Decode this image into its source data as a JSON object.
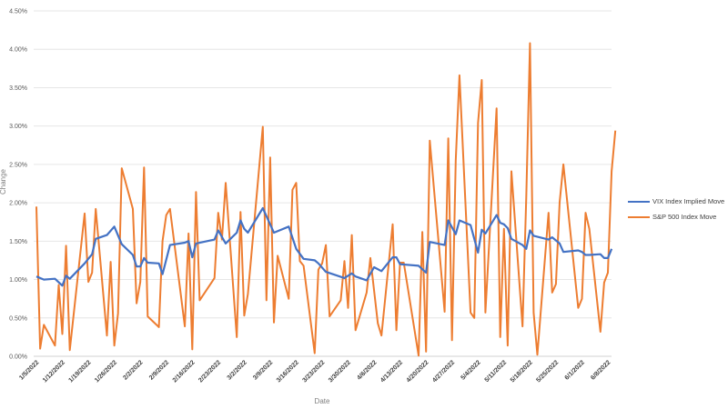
{
  "chart_data": {
    "type": "line",
    "title": "",
    "xlabel": "Date",
    "ylabel": "Change",
    "ylim": [
      0,
      4.5
    ],
    "y_unit": "%",
    "y_ticks": [
      "0.00%",
      "0.50%",
      "1.00%",
      "1.50%",
      "2.00%",
      "2.50%",
      "3.00%",
      "3.50%",
      "4.00%",
      "4.50%"
    ],
    "x_ticks": [
      "1/5/2022",
      "1/12/2022",
      "1/19/2022",
      "1/26/2022",
      "2/2/2022",
      "2/9/2022",
      "2/16/2022",
      "2/23/2022",
      "3/2/2022",
      "3/9/2022",
      "3/16/2022",
      "3/23/2022",
      "3/30/2022",
      "4/6/2022",
      "4/13/2022",
      "4/20/2022",
      "4/27/2022",
      "5/4/2022",
      "5/11/2022",
      "5/18/2022",
      "5/25/2022",
      "6/1/2022",
      "6/8/2022"
    ],
    "xlim": [
      "1/5/2022",
      "6/10/2022"
    ],
    "grid": "horizontal",
    "legend_position": "right",
    "series": [
      {
        "name": "VIX Index Implied Move",
        "color": "#4472c4",
        "points": [
          [
            "1/5/2022",
            1.04
          ],
          [
            "1/7/2022",
            1.0
          ],
          [
            "1/10/2022",
            1.01
          ],
          [
            "1/12/2022",
            0.92
          ],
          [
            "1/13/2022",
            1.05
          ],
          [
            "1/14/2022",
            1.01
          ],
          [
            "1/18/2022",
            1.21
          ],
          [
            "1/20/2022",
            1.33
          ],
          [
            "1/21/2022",
            1.53
          ],
          [
            "1/24/2022",
            1.58
          ],
          [
            "1/26/2022",
            1.69
          ],
          [
            "1/28/2022",
            1.46
          ],
          [
            "1/31/2022",
            1.32
          ],
          [
            "2/1/2022",
            1.17
          ],
          [
            "2/2/2022",
            1.17
          ],
          [
            "2/3/2022",
            1.28
          ],
          [
            "2/4/2022",
            1.22
          ],
          [
            "2/7/2022",
            1.21
          ],
          [
            "2/8/2022",
            1.07
          ],
          [
            "2/10/2022",
            1.45
          ],
          [
            "2/14/2022",
            1.48
          ],
          [
            "2/15/2022",
            1.5
          ],
          [
            "2/16/2022",
            1.29
          ],
          [
            "2/17/2022",
            1.47
          ],
          [
            "2/22/2022",
            1.52
          ],
          [
            "2/23/2022",
            1.64
          ],
          [
            "2/25/2022",
            1.47
          ],
          [
            "2/28/2022",
            1.61
          ],
          [
            "3/1/2022",
            1.77
          ],
          [
            "3/2/2022",
            1.66
          ],
          [
            "3/3/2022",
            1.61
          ],
          [
            "3/7/2022",
            1.93
          ],
          [
            "3/10/2022",
            1.61
          ],
          [
            "3/14/2022",
            1.69
          ],
          [
            "3/16/2022",
            1.4
          ],
          [
            "3/18/2022",
            1.27
          ],
          [
            "3/21/2022",
            1.25
          ],
          [
            "3/22/2022",
            1.21
          ],
          [
            "3/24/2022",
            1.1
          ],
          [
            "3/29/2022",
            1.02
          ],
          [
            "3/31/2022",
            1.08
          ],
          [
            "4/1/2022",
            1.04
          ],
          [
            "4/4/2022",
            0.99
          ],
          [
            "4/6/2022",
            1.16
          ],
          [
            "4/8/2022",
            1.11
          ],
          [
            "4/11/2022",
            1.29
          ],
          [
            "4/12/2022",
            1.29
          ],
          [
            "4/13/2022",
            1.2
          ],
          [
            "4/18/2022",
            1.18
          ],
          [
            "4/20/2022",
            1.09
          ],
          [
            "4/21/2022",
            1.49
          ],
          [
            "4/25/2022",
            1.45
          ],
          [
            "4/26/2022",
            1.77
          ],
          [
            "4/28/2022",
            1.59
          ],
          [
            "4/29/2022",
            1.77
          ],
          [
            "5/2/2022",
            1.71
          ],
          [
            "5/4/2022",
            1.35
          ],
          [
            "5/5/2022",
            1.65
          ],
          [
            "5/6/2022",
            1.6
          ],
          [
            "5/9/2022",
            1.84
          ],
          [
            "5/10/2022",
            1.74
          ],
          [
            "5/11/2022",
            1.72
          ],
          [
            "5/12/2022",
            1.67
          ],
          [
            "5/13/2022",
            1.53
          ],
          [
            "5/16/2022",
            1.45
          ],
          [
            "5/17/2022",
            1.4
          ],
          [
            "5/18/2022",
            1.64
          ],
          [
            "5/19/2022",
            1.57
          ],
          [
            "5/23/2022",
            1.52
          ],
          [
            "5/24/2022",
            1.55
          ],
          [
            "5/26/2022",
            1.47
          ],
          [
            "5/27/2022",
            1.36
          ],
          [
            "5/31/2022",
            1.38
          ],
          [
            "6/1/2022",
            1.36
          ],
          [
            "6/2/2022",
            1.32
          ],
          [
            "6/3/2022",
            1.32
          ],
          [
            "6/6/2022",
            1.33
          ],
          [
            "6/7/2022",
            1.28
          ],
          [
            "6/8/2022",
            1.28
          ],
          [
            "6/9/2022",
            1.4
          ]
        ]
      },
      {
        "name": "S&P 500 Index Move",
        "color": "#ed7d31",
        "points": [
          [
            "1/5/2022",
            1.95
          ],
          [
            "1/6/2022",
            0.1
          ],
          [
            "1/7/2022",
            0.41
          ],
          [
            "1/10/2022",
            0.14
          ],
          [
            "1/11/2022",
            0.93
          ],
          [
            "1/12/2022",
            0.29
          ],
          [
            "1/13/2022",
            1.44
          ],
          [
            "1/14/2022",
            0.08
          ],
          [
            "1/18/2022",
            1.86
          ],
          [
            "1/19/2022",
            0.97
          ],
          [
            "1/20/2022",
            1.09
          ],
          [
            "1/21/2022",
            1.92
          ],
          [
            "1/24/2022",
            0.27
          ],
          [
            "1/25/2022",
            1.23
          ],
          [
            "1/26/2022",
            0.14
          ],
          [
            "1/27/2022",
            0.56
          ],
          [
            "1/28/2022",
            2.45
          ],
          [
            "1/31/2022",
            1.92
          ],
          [
            "2/1/2022",
            0.69
          ],
          [
            "2/2/2022",
            0.97
          ],
          [
            "2/3/2022",
            2.46
          ],
          [
            "2/4/2022",
            0.52
          ],
          [
            "2/7/2022",
            0.38
          ],
          [
            "2/8/2022",
            1.5
          ],
          [
            "2/9/2022",
            1.84
          ],
          [
            "2/10/2022",
            1.92
          ],
          [
            "2/14/2022",
            0.39
          ],
          [
            "2/15/2022",
            1.6
          ],
          [
            "2/16/2022",
            0.09
          ],
          [
            "2/17/2022",
            2.14
          ],
          [
            "2/18/2022",
            0.73
          ],
          [
            "2/22/2022",
            1.02
          ],
          [
            "2/23/2022",
            1.87
          ],
          [
            "2/24/2022",
            1.52
          ],
          [
            "2/25/2022",
            2.26
          ],
          [
            "2/28/2022",
            0.25
          ],
          [
            "3/1/2022",
            1.88
          ],
          [
            "3/2/2022",
            0.53
          ],
          [
            "3/3/2022",
            0.81
          ],
          [
            "3/7/2022",
            2.99
          ],
          [
            "3/8/2022",
            0.73
          ],
          [
            "3/9/2022",
            2.59
          ],
          [
            "3/10/2022",
            0.44
          ],
          [
            "3/11/2022",
            1.31
          ],
          [
            "3/14/2022",
            0.75
          ],
          [
            "3/15/2022",
            2.17
          ],
          [
            "3/16/2022",
            2.26
          ],
          [
            "3/17/2022",
            1.24
          ],
          [
            "3/18/2022",
            1.18
          ],
          [
            "3/21/2022",
            0.04
          ],
          [
            "3/22/2022",
            1.13
          ],
          [
            "3/23/2022",
            1.21
          ],
          [
            "3/24/2022",
            1.45
          ],
          [
            "3/25/2022",
            0.52
          ],
          [
            "3/28/2022",
            0.73
          ],
          [
            "3/29/2022",
            1.24
          ],
          [
            "3/30/2022",
            0.63
          ],
          [
            "3/31/2022",
            1.58
          ],
          [
            "4/1/2022",
            0.34
          ],
          [
            "4/4/2022",
            0.83
          ],
          [
            "4/5/2022",
            1.28
          ],
          [
            "4/7/2022",
            0.43
          ],
          [
            "4/8/2022",
            0.27
          ],
          [
            "4/11/2022",
            1.72
          ],
          [
            "4/12/2022",
            0.34
          ],
          [
            "4/13/2022",
            1.22
          ],
          [
            "4/14/2022",
            1.22
          ],
          [
            "4/18/2022",
            0.01
          ],
          [
            "4/19/2022",
            1.62
          ],
          [
            "4/20/2022",
            0.06
          ],
          [
            "4/21/2022",
            2.81
          ],
          [
            "4/25/2022",
            0.58
          ],
          [
            "4/26/2022",
            2.84
          ],
          [
            "4/27/2022",
            0.21
          ],
          [
            "4/28/2022",
            2.55
          ],
          [
            "4/29/2022",
            3.66
          ],
          [
            "5/2/2022",
            0.57
          ],
          [
            "5/3/2022",
            0.5
          ],
          [
            "5/4/2022",
            3.04
          ],
          [
            "5/5/2022",
            3.6
          ],
          [
            "5/6/2022",
            0.57
          ],
          [
            "5/9/2022",
            3.23
          ],
          [
            "5/10/2022",
            0.25
          ],
          [
            "5/11/2022",
            1.66
          ],
          [
            "5/12/2022",
            0.14
          ],
          [
            "5/13/2022",
            2.41
          ],
          [
            "5/16/2022",
            0.39
          ],
          [
            "5/17/2022",
            2.07
          ],
          [
            "5/18/2022",
            4.08
          ],
          [
            "5/19/2022",
            0.57
          ],
          [
            "5/20/2022",
            0.02
          ],
          [
            "5/23/2022",
            1.87
          ],
          [
            "5/24/2022",
            0.83
          ],
          [
            "5/25/2022",
            0.94
          ],
          [
            "5/26/2022",
            2.01
          ],
          [
            "5/27/2022",
            2.5
          ],
          [
            "5/31/2022",
            0.63
          ],
          [
            "6/1/2022",
            0.75
          ],
          [
            "6/2/2022",
            1.87
          ],
          [
            "6/3/2022",
            1.66
          ],
          [
            "6/6/2022",
            0.32
          ],
          [
            "6/7/2022",
            0.96
          ],
          [
            "6/8/2022",
            1.09
          ],
          [
            "6/9/2022",
            2.41
          ],
          [
            "6/10/2022",
            2.94
          ]
        ]
      }
    ]
  }
}
